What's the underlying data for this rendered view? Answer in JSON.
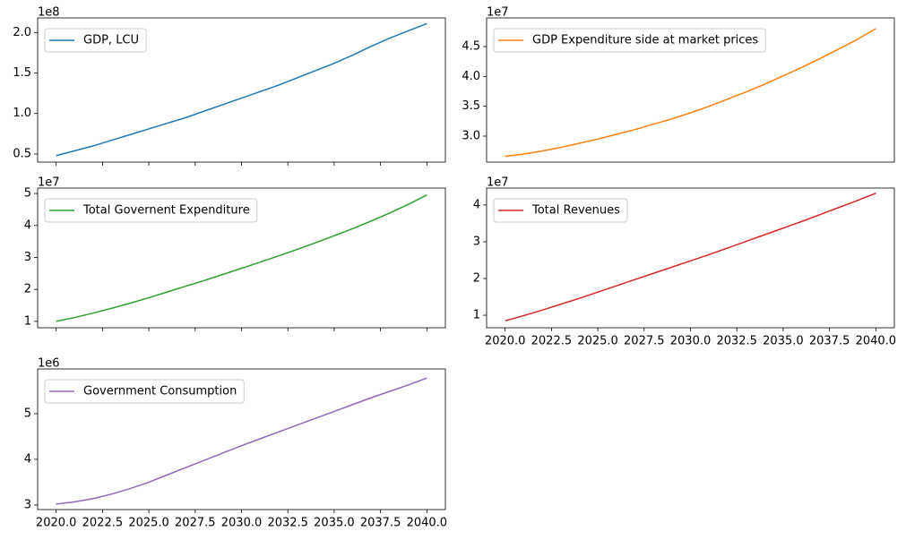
{
  "chart_data": [
    {
      "type": "line",
      "offset_text": "1e8",
      "legend": "upper left",
      "x": [
        2020,
        2021,
        2022,
        2023,
        2024,
        2025,
        2026,
        2027,
        2028,
        2029,
        2030,
        2031,
        2032,
        2033,
        2034,
        2035,
        2036,
        2037,
        2038,
        2039,
        2040
      ],
      "xlim": [
        2019,
        2041
      ],
      "xticks": [
        2020,
        2022.5,
        2025,
        2027.5,
        2030,
        2032.5,
        2035,
        2037.5,
        2040
      ],
      "xticklabels": false,
      "ylim": [
        0.4,
        2.18
      ],
      "yticks": [
        {
          "value": 0.5,
          "label": "0.5"
        },
        {
          "value": 1,
          "label": "1.0"
        },
        {
          "value": 1.5,
          "label": "1.5"
        },
        {
          "value": 2,
          "label": "2.0"
        }
      ],
      "series": [
        {
          "name": "GDP, LCU",
          "color": "#1f77b4",
          "values": [
            0.48,
            0.54,
            0.6,
            0.67,
            0.74,
            0.81,
            0.88,
            0.95,
            1.03,
            1.11,
            1.19,
            1.27,
            1.35,
            1.44,
            1.53,
            1.62,
            1.72,
            1.83,
            1.93,
            2.02,
            2.11
          ]
        }
      ]
    },
    {
      "type": "line",
      "offset_text": "1e7",
      "legend": "upper left",
      "x": [
        2020,
        2021,
        2022,
        2023,
        2024,
        2025,
        2026,
        2027,
        2028,
        2029,
        2030,
        2031,
        2032,
        2033,
        2034,
        2035,
        2036,
        2037,
        2038,
        2039,
        2040
      ],
      "xlim": [
        2019,
        2041
      ],
      "ylim": [
        2.565,
        4.98
      ],
      "yticks": [
        {
          "value": 3,
          "label": "3.0"
        },
        3.5,
        {
          "value": 4,
          "label": "4.0"
        },
        4.5
      ],
      "series": [
        {
          "name": "GDP Expenditure side at market prices",
          "color": "#ff7f0e",
          "values": [
            2.66,
            2.7,
            2.75,
            2.81,
            2.88,
            2.95,
            3.03,
            3.11,
            3.2,
            3.29,
            3.39,
            3.5,
            3.62,
            3.74,
            3.87,
            4.01,
            4.15,
            4.3,
            4.46,
            4.62,
            4.8
          ]
        }
      ]
    },
    {
      "type": "line",
      "offset_text": "1e7",
      "legend": "upper left",
      "x": [
        2020,
        2021,
        2022,
        2023,
        2024,
        2025,
        2026,
        2027,
        2028,
        2029,
        2030,
        2031,
        2032,
        2033,
        2034,
        2035,
        2036,
        2037,
        2038,
        2039,
        2040
      ],
      "xlim": [
        2019,
        2041
      ],
      "xticks": [
        2020,
        2022.5,
        2025,
        2027.5,
        2030,
        2032.5,
        2035,
        2037.5,
        2040
      ],
      "xticklabels": false,
      "ylim": [
        0.8,
        5.17
      ],
      "yticks": [
        1,
        2,
        3,
        4,
        5
      ],
      "series": [
        {
          "name": "Total Governent Expenditure",
          "color": "#2ca02c",
          "values": [
            1.0,
            1.12,
            1.26,
            1.41,
            1.57,
            1.74,
            1.92,
            2.1,
            2.28,
            2.47,
            2.66,
            2.85,
            3.05,
            3.25,
            3.46,
            3.68,
            3.9,
            4.14,
            4.39,
            4.66,
            4.95
          ]
        }
      ]
    },
    {
      "type": "line",
      "offset_text": "1e7",
      "legend": "upper left",
      "x": [
        2020,
        2021,
        2022,
        2023,
        2024,
        2025,
        2026,
        2027,
        2028,
        2029,
        2030,
        2031,
        2032,
        2033,
        2034,
        2035,
        2036,
        2037,
        2038,
        2039,
        2040
      ],
      "xlim": [
        2019,
        2041
      ],
      "xticks": [
        {
          "value": 2020,
          "label": "2020.0"
        },
        2022.5,
        {
          "value": 2025,
          "label": "2025.0"
        },
        2027.5,
        {
          "value": 2030,
          "label": "2030.0"
        },
        2032.5,
        {
          "value": 2035,
          "label": "2035.0"
        },
        2037.5,
        {
          "value": 2040,
          "label": "2040.0"
        }
      ],
      "xticklabels": true,
      "ylim": [
        0.66,
        4.46
      ],
      "yticks": [
        1,
        2,
        3,
        4
      ],
      "series": [
        {
          "name": "Total Revenues",
          "color": "#d62728",
          "values": [
            0.85,
            0.99,
            1.14,
            1.3,
            1.46,
            1.63,
            1.8,
            1.97,
            2.14,
            2.31,
            2.48,
            2.65,
            2.83,
            3.01,
            3.19,
            3.37,
            3.55,
            3.74,
            3.93,
            4.12,
            4.32
          ]
        }
      ]
    },
    {
      "type": "line",
      "offset_text": "1e6",
      "legend": "upper left",
      "x": [
        2020,
        2021,
        2022,
        2023,
        2024,
        2025,
        2026,
        2027,
        2028,
        2029,
        2030,
        2031,
        2032,
        2033,
        2034,
        2035,
        2036,
        2037,
        2038,
        2039,
        2040
      ],
      "xlim": [
        2019,
        2041
      ],
      "xticks": [
        {
          "value": 2020,
          "label": "2020.0"
        },
        2022.5,
        {
          "value": 2025,
          "label": "2025.0"
        },
        2027.5,
        {
          "value": 2030,
          "label": "2030.0"
        },
        2032.5,
        {
          "value": 2035,
          "label": "2035.0"
        },
        2037.5,
        {
          "value": 2040,
          "label": "2040.0"
        }
      ],
      "xticklabels": true,
      "ylim": [
        2.9,
        5.98
      ],
      "yticks": [
        3,
        4,
        5
      ],
      "series": [
        {
          "name": "Government Consumption",
          "color": "#9467bd",
          "values": [
            3.02,
            3.07,
            3.14,
            3.24,
            3.36,
            3.5,
            3.66,
            3.82,
            3.98,
            4.14,
            4.3,
            4.45,
            4.6,
            4.75,
            4.9,
            5.05,
            5.2,
            5.35,
            5.49,
            5.63,
            5.78
          ]
        }
      ]
    }
  ]
}
